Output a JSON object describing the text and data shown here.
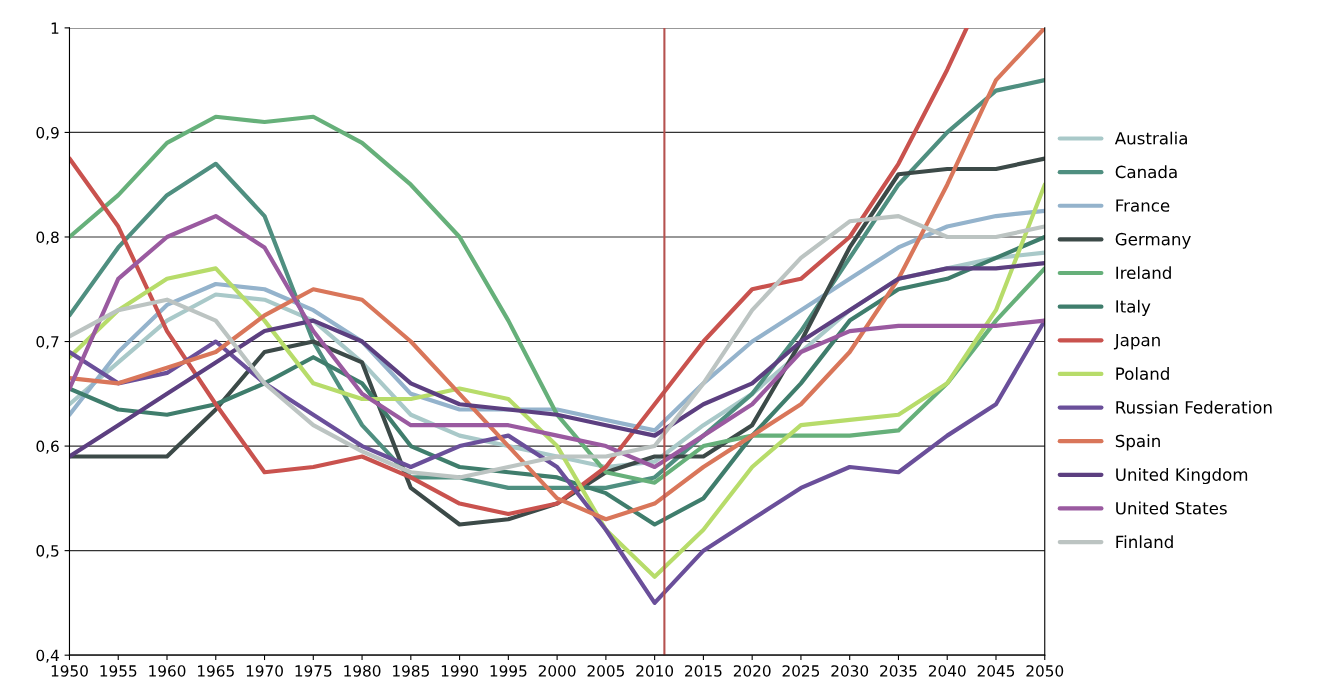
{
  "chart_data": {
    "type": "line",
    "x": [
      1950,
      1955,
      1960,
      1965,
      1970,
      1975,
      1980,
      1985,
      1990,
      1995,
      2000,
      2005,
      2010,
      2015,
      2020,
      2025,
      2030,
      2035,
      2040,
      2045,
      2050
    ],
    "series": [
      {
        "name": "Australia",
        "color": "#a9c9c9",
        "values": [
          0.64,
          0.68,
          0.72,
          0.745,
          0.74,
          0.72,
          0.68,
          0.63,
          0.61,
          0.6,
          0.59,
          0.58,
          0.585,
          0.62,
          0.65,
          0.69,
          0.73,
          0.76,
          0.77,
          0.78,
          0.785
        ]
      },
      {
        "name": "Canada",
        "color": "#4f8f80",
        "values": [
          0.725,
          0.79,
          0.84,
          0.87,
          0.82,
          0.7,
          0.62,
          0.57,
          0.57,
          0.56,
          0.56,
          0.56,
          0.57,
          0.61,
          0.65,
          0.71,
          0.78,
          0.85,
          0.9,
          0.94,
          0.95
        ]
      },
      {
        "name": "France",
        "color": "#94b3cc",
        "values": [
          0.63,
          0.69,
          0.735,
          0.755,
          0.75,
          0.73,
          0.7,
          0.65,
          0.635,
          0.635,
          0.635,
          0.625,
          0.615,
          0.66,
          0.7,
          0.73,
          0.76,
          0.79,
          0.81,
          0.82,
          0.825
        ]
      },
      {
        "name": "Germany",
        "color": "#3c4a48",
        "values": [
          0.59,
          0.59,
          0.59,
          0.635,
          0.69,
          0.7,
          0.68,
          0.56,
          0.525,
          0.53,
          0.545,
          0.575,
          0.59,
          0.59,
          0.62,
          0.7,
          0.79,
          0.86,
          0.865,
          0.865,
          0.875
        ]
      },
      {
        "name": "Ireland",
        "color": "#66b07a",
        "values": [
          0.8,
          0.84,
          0.89,
          0.915,
          0.91,
          0.915,
          0.89,
          0.85,
          0.8,
          0.72,
          0.63,
          0.575,
          0.565,
          0.6,
          0.61,
          0.61,
          0.61,
          0.615,
          0.66,
          0.72,
          0.77
        ]
      },
      {
        "name": "Italy",
        "color": "#3f7d6c",
        "values": [
          0.655,
          0.635,
          0.63,
          0.64,
          0.66,
          0.685,
          0.66,
          0.6,
          0.58,
          0.575,
          0.57,
          0.555,
          0.525,
          0.55,
          0.61,
          0.66,
          0.72,
          0.75,
          0.76,
          0.78,
          0.8
        ]
      },
      {
        "name": "Japan",
        "color": "#c9524e",
        "x": [
          1950,
          1955,
          1960,
          1965,
          1970,
          1975,
          1980,
          1985,
          1990,
          1995,
          2000,
          2005,
          2010,
          2015,
          2020,
          2025,
          2030,
          2035,
          2040,
          2042
        ],
        "values": [
          0.875,
          0.81,
          0.71,
          0.64,
          0.575,
          0.58,
          0.59,
          0.57,
          0.545,
          0.535,
          0.545,
          0.58,
          0.64,
          0.7,
          0.75,
          0.76,
          0.8,
          0.87,
          0.96,
          1.0
        ]
      },
      {
        "name": "Poland",
        "color": "#b7dc6a",
        "values": [
          0.685,
          0.73,
          0.76,
          0.77,
          0.72,
          0.66,
          0.645,
          0.645,
          0.655,
          0.645,
          0.6,
          0.52,
          0.475,
          0.52,
          0.58,
          0.62,
          0.625,
          0.63,
          0.66,
          0.73,
          0.85
        ]
      },
      {
        "name": "Russian Federation",
        "color": "#6a4f9a",
        "values": [
          0.69,
          0.66,
          0.67,
          0.7,
          0.66,
          0.63,
          0.6,
          0.58,
          0.6,
          0.61,
          0.58,
          0.52,
          0.45,
          0.5,
          0.53,
          0.56,
          0.58,
          0.575,
          0.61,
          0.64,
          0.72
        ]
      },
      {
        "name": "Spain",
        "color": "#d9765a",
        "values": [
          0.665,
          0.66,
          0.675,
          0.69,
          0.725,
          0.75,
          0.74,
          0.7,
          0.65,
          0.6,
          0.55,
          0.53,
          0.545,
          0.58,
          0.61,
          0.64,
          0.69,
          0.76,
          0.85,
          0.95,
          1.0
        ]
      },
      {
        "name": "United Kingdom",
        "color": "#5c3f80",
        "values": [
          0.59,
          0.62,
          0.65,
          0.68,
          0.71,
          0.72,
          0.7,
          0.66,
          0.64,
          0.635,
          0.63,
          0.62,
          0.61,
          0.64,
          0.66,
          0.7,
          0.73,
          0.76,
          0.77,
          0.77,
          0.775
        ]
      },
      {
        "name": "United States",
        "color": "#9a5aa0",
        "values": [
          0.655,
          0.76,
          0.8,
          0.82,
          0.79,
          0.71,
          0.65,
          0.62,
          0.62,
          0.62,
          0.61,
          0.6,
          0.58,
          0.61,
          0.64,
          0.69,
          0.71,
          0.715,
          0.715,
          0.715,
          0.72
        ]
      },
      {
        "name": "Finland",
        "color": "#bcc4c2",
        "values": [
          0.705,
          0.73,
          0.74,
          0.72,
          0.66,
          0.62,
          0.595,
          0.575,
          0.57,
          0.58,
          0.59,
          0.59,
          0.6,
          0.66,
          0.73,
          0.78,
          0.815,
          0.82,
          0.8,
          0.8,
          0.81
        ]
      }
    ],
    "xlim": [
      1950,
      2050
    ],
    "xticks": [
      1950,
      1955,
      1960,
      1965,
      1970,
      1975,
      1980,
      1985,
      1990,
      1995,
      2000,
      2005,
      2010,
      2015,
      2020,
      2025,
      2030,
      2035,
      2040,
      2045,
      2050
    ],
    "ylim": [
      0.4,
      1
    ],
    "yticks": [
      {
        "value": 0.4,
        "label": "0,4"
      },
      {
        "value": 0.5,
        "label": "0,5"
      },
      {
        "value": 0.6,
        "label": "0,6"
      },
      {
        "value": 0.7,
        "label": "0,7"
      },
      {
        "value": 0.8,
        "label": "0,8"
      },
      {
        "value": 0.9,
        "label": "0,9"
      },
      {
        "value": 1,
        "label": "1"
      }
    ],
    "ref_lines": [
      {
        "axis": "x",
        "value": 2011,
        "color": "#b5524f"
      }
    ],
    "grid": "y",
    "legend": "right"
  }
}
